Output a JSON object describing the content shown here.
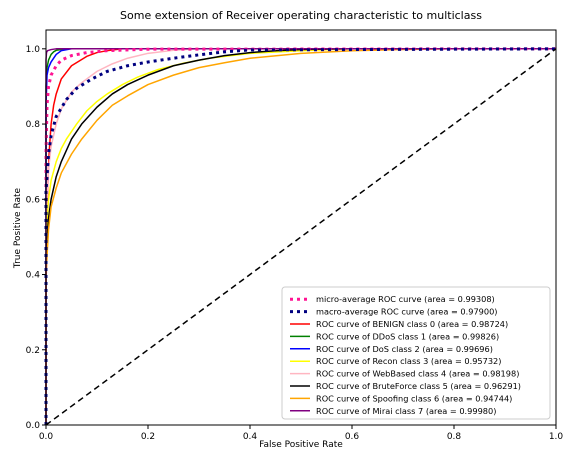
{
  "chart_data": {
    "type": "line",
    "title": "Some extension of Receiver operating characteristic to multiclass",
    "xlabel": "False Positive Rate",
    "ylabel": "True Positive Rate",
    "xlim": [
      0.0,
      1.0
    ],
    "ylim": [
      0.0,
      1.05
    ],
    "xticks": [
      "0.0",
      "0.2",
      "0.4",
      "0.6",
      "0.8",
      "1.0"
    ],
    "yticks": [
      "0.0",
      "0.2",
      "0.4",
      "0.6",
      "0.8",
      "1.0"
    ],
    "grid": false,
    "legend_position": "lower-right",
    "series": [
      {
        "name": "micro-average ROC curve (area = 0.99308)",
        "color": "#ff1493",
        "style": "dotted-thick",
        "x": [
          0,
          0.0,
          0.002,
          0.005,
          0.01,
          0.02,
          0.03,
          0.05,
          0.08,
          0.12,
          0.2,
          1.0
        ],
        "y": [
          0,
          0.72,
          0.85,
          0.9,
          0.93,
          0.955,
          0.97,
          0.982,
          0.99,
          0.995,
          0.999,
          1.0
        ]
      },
      {
        "name": "macro-average ROC curve (area = 0.97900)",
        "color": "#000080",
        "style": "dotted-thick",
        "x": [
          0,
          0.0,
          0.005,
          0.01,
          0.02,
          0.04,
          0.06,
          0.09,
          0.12,
          0.16,
          0.2,
          0.25,
          0.3,
          0.35,
          0.4,
          1.0
        ],
        "y": [
          0,
          0.62,
          0.72,
          0.77,
          0.82,
          0.865,
          0.895,
          0.92,
          0.94,
          0.955,
          0.965,
          0.975,
          0.984,
          0.992,
          0.997,
          1.0
        ]
      },
      {
        "name": "ROC curve of BENIGN class 0 (area = 0.98724)",
        "color": "#ff0000",
        "style": "solid",
        "x": [
          0,
          0.0,
          0.003,
          0.006,
          0.01,
          0.015,
          0.02,
          0.03,
          0.05,
          0.08,
          0.1,
          0.12,
          0.15,
          1.0
        ],
        "y": [
          0,
          0.35,
          0.62,
          0.72,
          0.8,
          0.85,
          0.88,
          0.92,
          0.955,
          0.98,
          0.99,
          0.995,
          1.0,
          1.0
        ]
      },
      {
        "name": "ROC curve of DDoS class 1 (area = 0.99826)",
        "color": "#008000",
        "style": "solid",
        "x": [
          0,
          0.0,
          0.002,
          0.005,
          0.01,
          0.015,
          0.02,
          0.04,
          1.0
        ],
        "y": [
          0,
          0.9,
          0.95,
          0.97,
          0.985,
          0.992,
          0.996,
          1.0,
          1.0
        ]
      },
      {
        "name": "ROC curve of DoS class 2 (area = 0.99696)",
        "color": "#0000ff",
        "style": "solid",
        "x": [
          0,
          0.0,
          0.002,
          0.005,
          0.01,
          0.015,
          0.02,
          0.03,
          0.05,
          1.0
        ],
        "y": [
          0,
          0.85,
          0.93,
          0.95,
          0.965,
          0.975,
          0.985,
          0.995,
          1.0,
          1.0
        ]
      },
      {
        "name": "ROC curve of Recon class 3 (area = 0.95732)",
        "color": "#ffff00",
        "style": "solid",
        "x": [
          0,
          0.0,
          0.005,
          0.01,
          0.02,
          0.03,
          0.04,
          0.06,
          0.08,
          0.1,
          0.12,
          0.15,
          0.18,
          0.22,
          0.27,
          0.32,
          0.4,
          0.5,
          0.6,
          1.0
        ],
        "y": [
          0,
          0.5,
          0.6,
          0.65,
          0.7,
          0.735,
          0.76,
          0.8,
          0.835,
          0.86,
          0.88,
          0.905,
          0.925,
          0.945,
          0.962,
          0.975,
          0.988,
          0.995,
          1.0,
          1.0
        ]
      },
      {
        "name": "ROC curve of WebBased class 4 (area = 0.98198)",
        "color": "#ffb6c1",
        "style": "solid",
        "x": [
          0,
          0.0,
          0.005,
          0.01,
          0.02,
          0.03,
          0.05,
          0.07,
          0.1,
          0.13,
          0.16,
          0.2,
          0.25,
          0.3,
          1.0
        ],
        "y": [
          0,
          0.55,
          0.68,
          0.74,
          0.8,
          0.84,
          0.885,
          0.91,
          0.94,
          0.96,
          0.975,
          0.988,
          0.996,
          1.0,
          1.0
        ]
      },
      {
        "name": "ROC curve of BruteForce class 5 (area = 0.96291)",
        "color": "#000000",
        "style": "solid",
        "x": [
          0,
          0.0,
          0.005,
          0.01,
          0.02,
          0.03,
          0.05,
          0.07,
          0.1,
          0.13,
          0.16,
          0.2,
          0.25,
          0.3,
          0.35,
          0.4,
          0.45,
          0.5,
          0.6,
          1.0
        ],
        "y": [
          0,
          0.45,
          0.55,
          0.6,
          0.66,
          0.7,
          0.76,
          0.8,
          0.845,
          0.88,
          0.905,
          0.93,
          0.955,
          0.97,
          0.982,
          0.99,
          0.995,
          0.998,
          1.0,
          1.0
        ]
      },
      {
        "name": "ROC curve of Spoofing class 6 (area = 0.94744)",
        "color": "#ffa500",
        "style": "solid",
        "x": [
          0,
          0.0,
          0.005,
          0.01,
          0.02,
          0.03,
          0.05,
          0.07,
          0.1,
          0.13,
          0.16,
          0.2,
          0.25,
          0.3,
          0.35,
          0.4,
          0.5,
          0.6,
          0.7,
          0.8,
          1.0
        ],
        "y": [
          0,
          0.4,
          0.52,
          0.58,
          0.63,
          0.67,
          0.72,
          0.76,
          0.81,
          0.85,
          0.875,
          0.905,
          0.93,
          0.95,
          0.963,
          0.975,
          0.988,
          0.995,
          0.998,
          1.0,
          1.0
        ]
      },
      {
        "name": "ROC curve of Mirai class 7 (area = 0.99980)",
        "color": "#800080",
        "style": "solid",
        "x": [
          0,
          0.0,
          0.001,
          0.003,
          0.01,
          0.02,
          1.0
        ],
        "y": [
          0,
          0.97,
          0.99,
          0.995,
          0.998,
          1.0,
          1.0
        ]
      },
      {
        "name": "",
        "color": "#000000",
        "style": "dashed",
        "x": [
          0,
          1
        ],
        "y": [
          0,
          1
        ]
      }
    ]
  }
}
